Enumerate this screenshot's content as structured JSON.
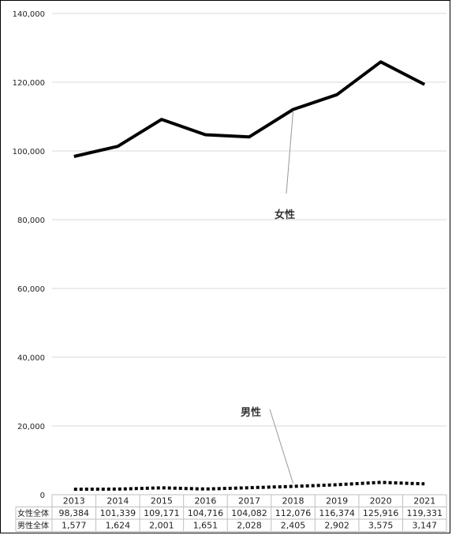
{
  "chart_data": {
    "type": "line",
    "categories": [
      "2013",
      "2014",
      "2015",
      "2016",
      "2017",
      "2018",
      "2019",
      "2020",
      "2021"
    ],
    "ylim": [
      0,
      140000
    ],
    "yticks": [
      0,
      20000,
      40000,
      60000,
      80000,
      100000,
      120000,
      140000
    ],
    "ytick_labels": [
      "0",
      "20,000",
      "40,000",
      "60,000",
      "80,000",
      "100,000",
      "120,000",
      "140,000"
    ],
    "grid": true,
    "series": [
      {
        "name": "女性全体",
        "annotation": "女性",
        "line_style": "solid",
        "color": "#000000",
        "values": [
          98384,
          101339,
          109171,
          104716,
          104082,
          112076,
          116374,
          125916,
          119331
        ],
        "value_labels": [
          "98,384",
          "101,339",
          "109,171",
          "104,716",
          "104,082",
          "112,076",
          "116,374",
          "125,916",
          "119,331"
        ]
      },
      {
        "name": "男性全体",
        "annotation": "男性",
        "line_style": "dotted",
        "color": "#000000",
        "values": [
          1577,
          1624,
          2001,
          1651,
          2028,
          2405,
          2902,
          3575,
          3147
        ],
        "value_labels": [
          "1,577",
          "1,624",
          "2,001",
          "1,651",
          "2,028",
          "2,405",
          "2,902",
          "3,575",
          "3,147"
        ]
      }
    ]
  }
}
